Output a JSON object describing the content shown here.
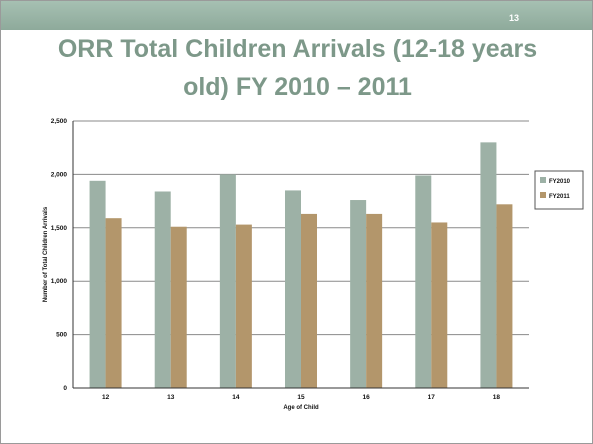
{
  "slide": {
    "page_number": "13",
    "title_line1": "ORR Total Children Arrivals (12-18 years",
    "title_line2": "old) FY 2010 – 2011"
  },
  "colors": {
    "band": "#8eaa9b",
    "title": "#7d9889",
    "fy2010": "#9db1a6",
    "fy2011": "#b3966b"
  },
  "chart_data": {
    "type": "bar",
    "categories": [
      "12",
      "13",
      "14",
      "15",
      "16",
      "17",
      "18"
    ],
    "series": [
      {
        "name": "FY2010",
        "values": [
          1940,
          1840,
          2000,
          1850,
          1760,
          1990,
          2300
        ]
      },
      {
        "name": "FY2011",
        "values": [
          1590,
          1510,
          1530,
          1630,
          1630,
          1550,
          1720
        ]
      }
    ],
    "title": "",
    "xlabel": "Age of Child",
    "ylabel": "Number of Total Children Arrivals",
    "ylim": [
      0,
      2500
    ],
    "yticks": [
      "0",
      "500",
      "1,000",
      "1,500",
      "2,000",
      "2,500"
    ],
    "grid": true,
    "legend": "right"
  }
}
